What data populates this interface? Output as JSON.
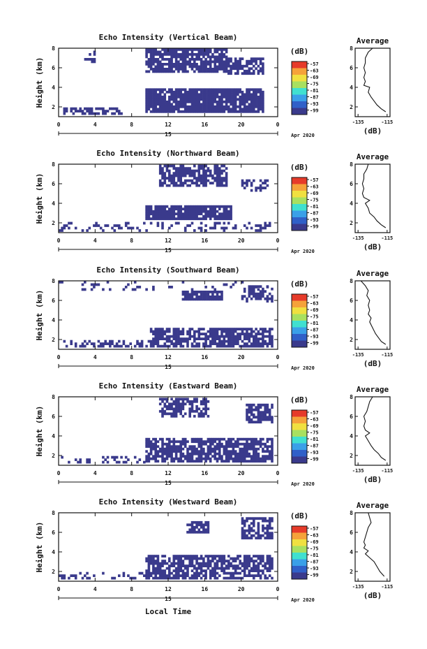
{
  "figure": {
    "xlabel": "Local Time",
    "date_label": "Apr 2020",
    "day_label": "15",
    "colorbar_unit": "(dB)",
    "colorbar_ticks": [
      "-57",
      "-63",
      "-69",
      "-75",
      "-81",
      "-87",
      "-93",
      "-99"
    ],
    "colorbar_colors": [
      "#e63b2a",
      "#f5a23a",
      "#f0e040",
      "#a8e060",
      "#40e0d0",
      "#3aa0e8",
      "#3060c8",
      "#3a3a8c"
    ],
    "echo_color": "#3a3a8c",
    "avg_title": "Average",
    "avg_xlabel": "(dB)",
    "avg_xticks": [
      "-135",
      "-115"
    ],
    "ylabel": "Height (km)",
    "yticks": [
      "2",
      "4",
      "6",
      "8"
    ],
    "xticks": [
      "0",
      "4",
      "8",
      "12",
      "16",
      "20",
      "0"
    ]
  },
  "chart_data": [
    {
      "type": "heatmap",
      "title": "Echo Intensity (Vertical Beam)",
      "x_range": [
        0,
        24
      ],
      "y_range": [
        1,
        8
      ],
      "echo_regions": [
        {
          "t0": 2.8,
          "t1": 4.0,
          "h0": 6.5,
          "h1": 7.7,
          "d": 0.5
        },
        {
          "t0": 9.5,
          "t1": 18.5,
          "h0": 5.5,
          "h1": 7.8,
          "d": 0.8
        },
        {
          "t0": 18.5,
          "t1": 22.5,
          "h0": 5.3,
          "h1": 6.9,
          "d": 0.7
        },
        {
          "t0": 9.5,
          "t1": 22.5,
          "h0": 1.4,
          "h1": 3.8,
          "d": 0.9
        },
        {
          "t0": 0.5,
          "t1": 7.0,
          "h0": 1.2,
          "h1": 1.9,
          "d": 0.6
        }
      ],
      "profile": [
        [
          -125,
          8
        ],
        [
          -128,
          7.6
        ],
        [
          -130,
          7
        ],
        [
          -130,
          6.5
        ],
        [
          -131,
          6
        ],
        [
          -130,
          5.5
        ],
        [
          -131,
          5
        ],
        [
          -130,
          4.6
        ],
        [
          -131,
          4.2
        ],
        [
          -127,
          4
        ],
        [
          -128,
          3.5
        ],
        [
          -126,
          3
        ],
        [
          -124,
          2.6
        ],
        [
          -122,
          2.2
        ],
        [
          -119,
          1.8
        ],
        [
          -116,
          1.5
        ]
      ],
      "profile_xlim": [
        -137,
        -113
      ]
    },
    {
      "type": "heatmap",
      "title": "Echo Intensity (Northward Beam)",
      "x_range": [
        0,
        24
      ],
      "y_range": [
        1,
        8
      ],
      "echo_regions": [
        {
          "t0": 11.0,
          "t1": 18.5,
          "h0": 5.7,
          "h1": 7.8,
          "d": 0.7
        },
        {
          "t0": 20.0,
          "t1": 23.0,
          "h0": 5.2,
          "h1": 6.3,
          "d": 0.6
        },
        {
          "t0": 9.5,
          "t1": 19.0,
          "h0": 2.3,
          "h1": 3.8,
          "d": 0.9
        },
        {
          "t0": 0.0,
          "t1": 23.5,
          "h0": 1.1,
          "h1": 2.0,
          "d": 0.25
        }
      ],
      "profile": [
        [
          -128,
          8
        ],
        [
          -129,
          7.5
        ],
        [
          -131,
          7
        ],
        [
          -131,
          6.5
        ],
        [
          -132,
          6
        ],
        [
          -131,
          5.5
        ],
        [
          -132,
          5
        ],
        [
          -131,
          4.6
        ],
        [
          -127,
          4.3
        ],
        [
          -130,
          4
        ],
        [
          -128,
          3.5
        ],
        [
          -127,
          3
        ],
        [
          -124,
          2.6
        ],
        [
          -122,
          2.2
        ],
        [
          -119,
          1.8
        ],
        [
          -116,
          1.5
        ]
      ],
      "profile_xlim": [
        -137,
        -113
      ]
    },
    {
      "type": "heatmap",
      "title": "Echo Intensity (Southward Beam)",
      "x_range": [
        0,
        24
      ],
      "y_range": [
        1,
        8
      ],
      "echo_regions": [
        {
          "t0": 13.5,
          "t1": 18.0,
          "h0": 6.0,
          "h1": 7.0,
          "d": 0.9
        },
        {
          "t0": 20.0,
          "t1": 23.5,
          "h0": 5.8,
          "h1": 7.5,
          "d": 0.6
        },
        {
          "t0": 0.0,
          "t1": 23.5,
          "h0": 7.0,
          "h1": 7.9,
          "d": 0.12
        },
        {
          "t0": 10.0,
          "t1": 23.5,
          "h0": 1.2,
          "h1": 3.1,
          "d": 0.75
        },
        {
          "t0": 0.5,
          "t1": 10.0,
          "h0": 1.2,
          "h1": 1.8,
          "d": 0.35
        }
      ],
      "profile": [
        [
          -133,
          8
        ],
        [
          -130,
          7.5
        ],
        [
          -128,
          7
        ],
        [
          -129,
          6.5
        ],
        [
          -127,
          6
        ],
        [
          -128,
          5.5
        ],
        [
          -127,
          5
        ],
        [
          -128,
          4.6
        ],
        [
          -126,
          4.2
        ],
        [
          -127,
          3.8
        ],
        [
          -125,
          3.2
        ],
        [
          -123,
          2.6
        ],
        [
          -121,
          2.2
        ],
        [
          -119,
          1.8
        ],
        [
          -116,
          1.5
        ]
      ],
      "profile_xlim": [
        -137,
        -113
      ]
    },
    {
      "type": "heatmap",
      "title": "Echo Intensity (Eastward Beam)",
      "x_range": [
        0,
        24
      ],
      "y_range": [
        1,
        8
      ],
      "echo_regions": [
        {
          "t0": 11.0,
          "t1": 16.5,
          "h0": 5.9,
          "h1": 7.7,
          "d": 0.6
        },
        {
          "t0": 20.5,
          "t1": 23.5,
          "h0": 5.3,
          "h1": 7.2,
          "d": 0.75
        },
        {
          "t0": 9.5,
          "t1": 23.5,
          "h0": 1.3,
          "h1": 3.7,
          "d": 0.75
        },
        {
          "t0": 0.0,
          "t1": 9.5,
          "h0": 1.2,
          "h1": 1.8,
          "d": 0.3
        }
      ],
      "profile": [
        [
          -125,
          8
        ],
        [
          -127,
          7.5
        ],
        [
          -128,
          7
        ],
        [
          -129,
          6.5
        ],
        [
          -131,
          6
        ],
        [
          -130,
          5.5
        ],
        [
          -131,
          5
        ],
        [
          -130,
          4.6
        ],
        [
          -127,
          4.3
        ],
        [
          -130,
          4
        ],
        [
          -128,
          3.5
        ],
        [
          -126,
          3
        ],
        [
          -124,
          2.6
        ],
        [
          -121,
          2.2
        ],
        [
          -119,
          1.8
        ],
        [
          -116,
          1.5
        ]
      ],
      "profile_xlim": [
        -137,
        -113
      ]
    },
    {
      "type": "heatmap",
      "title": "Echo Intensity (Westward Beam)",
      "x_range": [
        0,
        24
      ],
      "y_range": [
        1,
        8
      ],
      "echo_regions": [
        {
          "t0": 14.0,
          "t1": 16.5,
          "h0": 5.9,
          "h1": 7.0,
          "d": 0.8
        },
        {
          "t0": 20.0,
          "t1": 23.5,
          "h0": 5.3,
          "h1": 7.5,
          "d": 0.7
        },
        {
          "t0": 9.5,
          "t1": 23.5,
          "h0": 1.2,
          "h1": 3.6,
          "d": 0.7
        },
        {
          "t0": 0.0,
          "t1": 9.5,
          "h0": 1.2,
          "h1": 1.8,
          "d": 0.3
        }
      ],
      "profile": [
        [
          -128,
          8
        ],
        [
          -127,
          7.5
        ],
        [
          -126,
          7
        ],
        [
          -128,
          6.5
        ],
        [
          -129,
          6
        ],
        [
          -130,
          5.5
        ],
        [
          -131,
          5
        ],
        [
          -130,
          4.7
        ],
        [
          -131,
          4.4
        ],
        [
          -128,
          4.1
        ],
        [
          -130,
          3.8
        ],
        [
          -127,
          3.4
        ],
        [
          -124,
          3
        ],
        [
          -122,
          2.5
        ],
        [
          -120,
          2
        ],
        [
          -117,
          1.5
        ]
      ],
      "profile_xlim": [
        -137,
        -113
      ]
    }
  ]
}
